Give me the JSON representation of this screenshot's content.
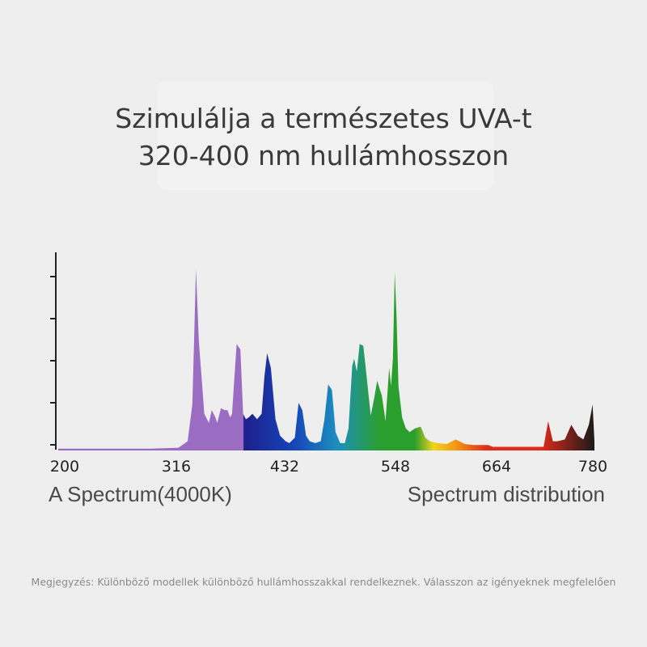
{
  "header": {
    "title_line1": "Szimulálja a természetes UVA-t",
    "title_line2": "320-400 nm hullámhosszon"
  },
  "chart_data": {
    "type": "area",
    "title": "",
    "xlabel": "",
    "ylabel": "",
    "x_ticks": [
      "200",
      "316",
      "432",
      "548",
      "664",
      "780"
    ],
    "xlim": [
      200,
      780
    ],
    "ylim": [
      0,
      1
    ],
    "y_axis_tick_count": 5,
    "grid": false,
    "series": [
      {
        "x": [
          200,
          300,
          330,
          340,
          345,
          347,
          349,
          352,
          358,
          363,
          366,
          370,
          372,
          376,
          380,
          383,
          386,
          388,
          393,
          397,
          400,
          403,
          406,
          410,
          415,
          420,
          423,
          426,
          430,
          435,
          440,
          446,
          450,
          456,
          460,
          464,
          468,
          472,
          478,
          484,
          488,
          492,
          496,
          500,
          505,
          510,
          514,
          518,
          520,
          523,
          526,
          530,
          533,
          538,
          542,
          545,
          548,
          550,
          554,
          558,
          560,
          562,
          564,
          566,
          568,
          572,
          576,
          580,
          586,
          592,
          597,
          602,
          610,
          620,
          630,
          640,
          650,
          658,
          665,
          670,
          690,
          710,
          725,
          730,
          735,
          740,
          748,
          755,
          762,
          768,
          774,
          778,
          780
        ],
        "y": [
          0.01,
          0.01,
          0.015,
          0.05,
          0.25,
          0.6,
          0.99,
          0.6,
          0.2,
          0.15,
          0.22,
          0.18,
          0.15,
          0.23,
          0.22,
          0.22,
          0.18,
          0.2,
          0.58,
          0.55,
          0.2,
          0.17,
          0.18,
          0.2,
          0.17,
          0.2,
          0.4,
          0.53,
          0.45,
          0.17,
          0.08,
          0.05,
          0.04,
          0.07,
          0.26,
          0.22,
          0.08,
          0.05,
          0.04,
          0.05,
          0.17,
          0.36,
          0.33,
          0.1,
          0.04,
          0.04,
          0.12,
          0.46,
          0.5,
          0.43,
          0.58,
          0.57,
          0.43,
          0.19,
          0.29,
          0.38,
          0.33,
          0.3,
          0.16,
          0.45,
          0.35,
          0.5,
          0.97,
          0.72,
          0.35,
          0.18,
          0.12,
          0.1,
          0.12,
          0.13,
          0.07,
          0.05,
          0.04,
          0.035,
          0.06,
          0.035,
          0.03,
          0.03,
          0.03,
          0.02,
          0.02,
          0.02,
          0.02,
          0.16,
          0.05,
          0.05,
          0.06,
          0.14,
          0.08,
          0.06,
          0.14,
          0.25,
          0.05
        ]
      }
    ]
  },
  "captions": {
    "left": "A Spectrum(4000K)",
    "right": "Spectrum distribution"
  },
  "footnote": "Megjegyzés: Különböző modellek különböző hullámhosszakkal rendelkeznek. Válasszon az igényeknek megfelelően",
  "colors": {
    "violet": "#9a6cc2",
    "indigo": "#1d1f8c",
    "blue": "#1645b8",
    "cyan": "#1c8fbe",
    "green": "#2b9f2e",
    "yellow": "#f1d41a",
    "orange": "#f29a16",
    "red": "#e02a1a",
    "dark": "#1a1a1a"
  }
}
